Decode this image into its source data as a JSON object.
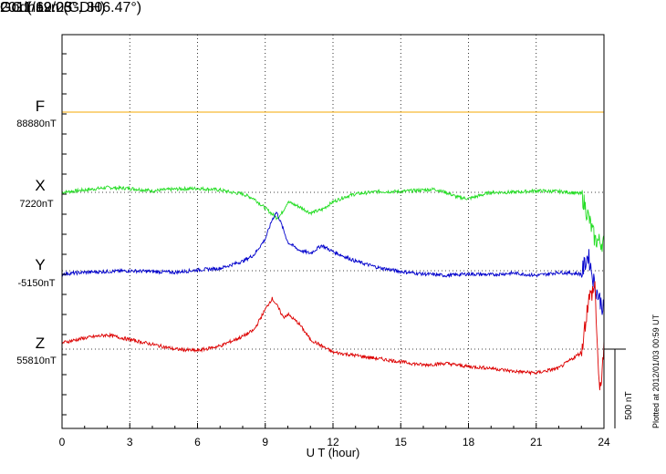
{
  "header": {
    "station": "Godhavn (GDH)",
    "coords": "GG ( 69.25°, 306.47°)",
    "date": "2011/12/03"
  },
  "footer_note": "Plotted at 2012/01/03 00:59 UT",
  "chart_data": {
    "type": "line",
    "title": "Godhavn (GDH)",
    "xlabel": "U T (hour)",
    "xlim": [
      0,
      24
    ],
    "x_ticks": [
      0,
      3,
      6,
      9,
      12,
      15,
      18,
      21,
      24
    ],
    "scale_bar": {
      "label": "500 nT",
      "value": 500
    },
    "grid": true,
    "series": [
      {
        "name": "F",
        "baseline_label": "88880nT",
        "color": "#f5a800",
        "x": [
          0,
          24
        ],
        "y": [
          0,
          0
        ]
      },
      {
        "name": "X",
        "baseline_label": "7220nT",
        "color": "#22dd22",
        "x": [
          0,
          1,
          2,
          3,
          4,
          5,
          6,
          7,
          7.5,
          8,
          8.5,
          9,
          9.5,
          9.7,
          10,
          10.5,
          11,
          11.5,
          12,
          12.5,
          13,
          14,
          15,
          16,
          16.5,
          17,
          17.5,
          18,
          18.5,
          19,
          20,
          21,
          22,
          22.5,
          23,
          23.3,
          23.6,
          24
        ],
        "y": [
          0,
          15,
          30,
          25,
          10,
          20,
          25,
          15,
          0,
          -10,
          -40,
          -100,
          -160,
          -140,
          -60,
          -90,
          -130,
          -110,
          -60,
          -30,
          -10,
          5,
          5,
          15,
          20,
          0,
          -30,
          -40,
          -20,
          0,
          0,
          10,
          5,
          0,
          -10,
          -150,
          -300,
          -320
        ]
      },
      {
        "name": "Y",
        "baseline_label": "-5150nT",
        "color": "#0000cc",
        "x": [
          0,
          1,
          2,
          3,
          4,
          5,
          6,
          7,
          8,
          8.5,
          9,
          9.3,
          9.5,
          9.7,
          10,
          10.5,
          11,
          11.5,
          12,
          13,
          14,
          15,
          16,
          17,
          18,
          19,
          20,
          21,
          22,
          23,
          23.3,
          23.6,
          24
        ],
        "y": [
          -20,
          -10,
          -5,
          0,
          -5,
          -10,
          5,
          15,
          60,
          100,
          200,
          320,
          370,
          300,
          180,
          130,
          110,
          160,
          120,
          60,
          20,
          -5,
          -20,
          -30,
          -20,
          -25,
          -15,
          -30,
          -10,
          -20,
          100,
          -100,
          -250
        ]
      },
      {
        "name": "Z",
        "baseline_label": "55810nT",
        "color": "#dd0000",
        "x": [
          0,
          1,
          2,
          3,
          4,
          5,
          6,
          7,
          8,
          8.5,
          9,
          9.3,
          9.5,
          9.8,
          10,
          10.5,
          11,
          12,
          13,
          14,
          15,
          16,
          17,
          18,
          19,
          20,
          21,
          22,
          23,
          23.3,
          23.6,
          23.8,
          24
        ],
        "y": [
          40,
          70,
          90,
          60,
          30,
          0,
          -10,
          20,
          80,
          120,
          250,
          320,
          280,
          200,
          220,
          160,
          60,
          -20,
          -40,
          -60,
          -80,
          -100,
          -90,
          -110,
          -120,
          -140,
          -150,
          -120,
          -20,
          300,
          400,
          -300,
          0
        ]
      }
    ]
  }
}
